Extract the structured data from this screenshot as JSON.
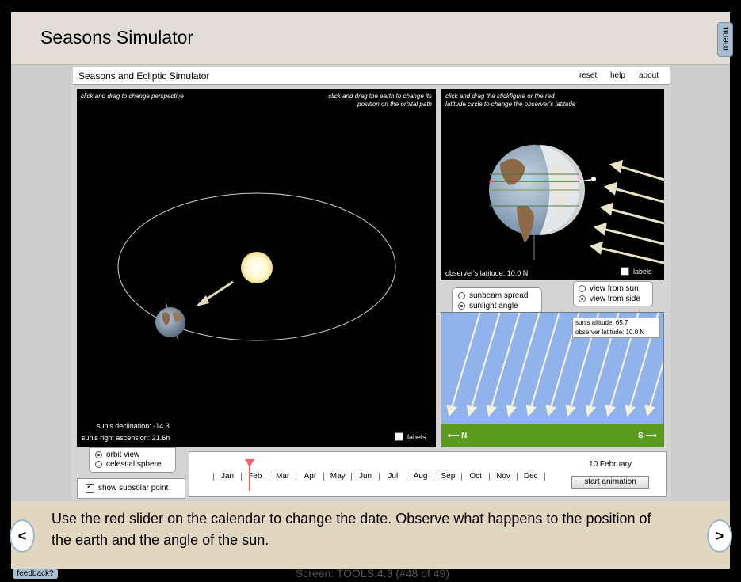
{
  "page": {
    "title": "Seasons Simulator",
    "menu_label": "menu"
  },
  "sim": {
    "title": "Seasons and Ecliptic Simulator",
    "links": {
      "reset": "reset",
      "help": "help",
      "about": "about"
    }
  },
  "orbit_panel": {
    "hint_left": "click and drag to change perspective",
    "hint_right_1": "click and drag the earth to change its",
    "hint_right_2": "position on the orbital path",
    "declination_label": "sun's declination:",
    "declination_value": "-14.3",
    "ascension_label": "sun's right ascension:",
    "ascension_value": "21.6h",
    "labels_checkbox": "labels"
  },
  "earth_panel": {
    "hint_1": "click and drag the stickfigure or the red",
    "hint_2": "latitude circle to change the observer's latitude",
    "latitude_label": "observer's latitude:",
    "latitude_value": "10.0 N",
    "labels_checkbox": "labels"
  },
  "view_options": {
    "from_sun": "view from sun",
    "from_side": "view from side",
    "selected": "view from side"
  },
  "sun_options": {
    "spread": "sunbeam spread",
    "angle": "sunlight angle",
    "selected": "sunlight angle"
  },
  "sunlight_panel": {
    "altitude_label": "sun's altitude:",
    "altitude_value": "65.7",
    "obs_lat_label": "observer latitude:",
    "obs_lat_value": "10.0 N",
    "north": "N",
    "south": "S"
  },
  "perspective_options": {
    "orbit": "orbit view",
    "celestial": "celestial sphere",
    "selected": "orbit view"
  },
  "subsolar": {
    "label": "show subsolar point",
    "checked": true
  },
  "calendar": {
    "months": [
      "Jan",
      "Feb",
      "Mar",
      "Apr",
      "May",
      "Jun",
      "Jul",
      "Aug",
      "Sep",
      "Oct",
      "Nov",
      "Dec"
    ],
    "date": "10 February",
    "year_fraction": 0.11,
    "start_button": "start animation"
  },
  "instructions": "Use the red slider on the calendar to change the date. Observe what happens to the position of the earth and the angle of the sun.",
  "footer": {
    "feedback": "feedback?",
    "screen": "Screen: TOOLS.4.3 (#48 of 49)"
  },
  "nav": {
    "prev": "<",
    "next": ">"
  },
  "colors": {
    "slider": "#ee6666",
    "sky": "#8fb3ea",
    "ground": "#5a9a1e",
    "sun": "#fffbe0"
  }
}
